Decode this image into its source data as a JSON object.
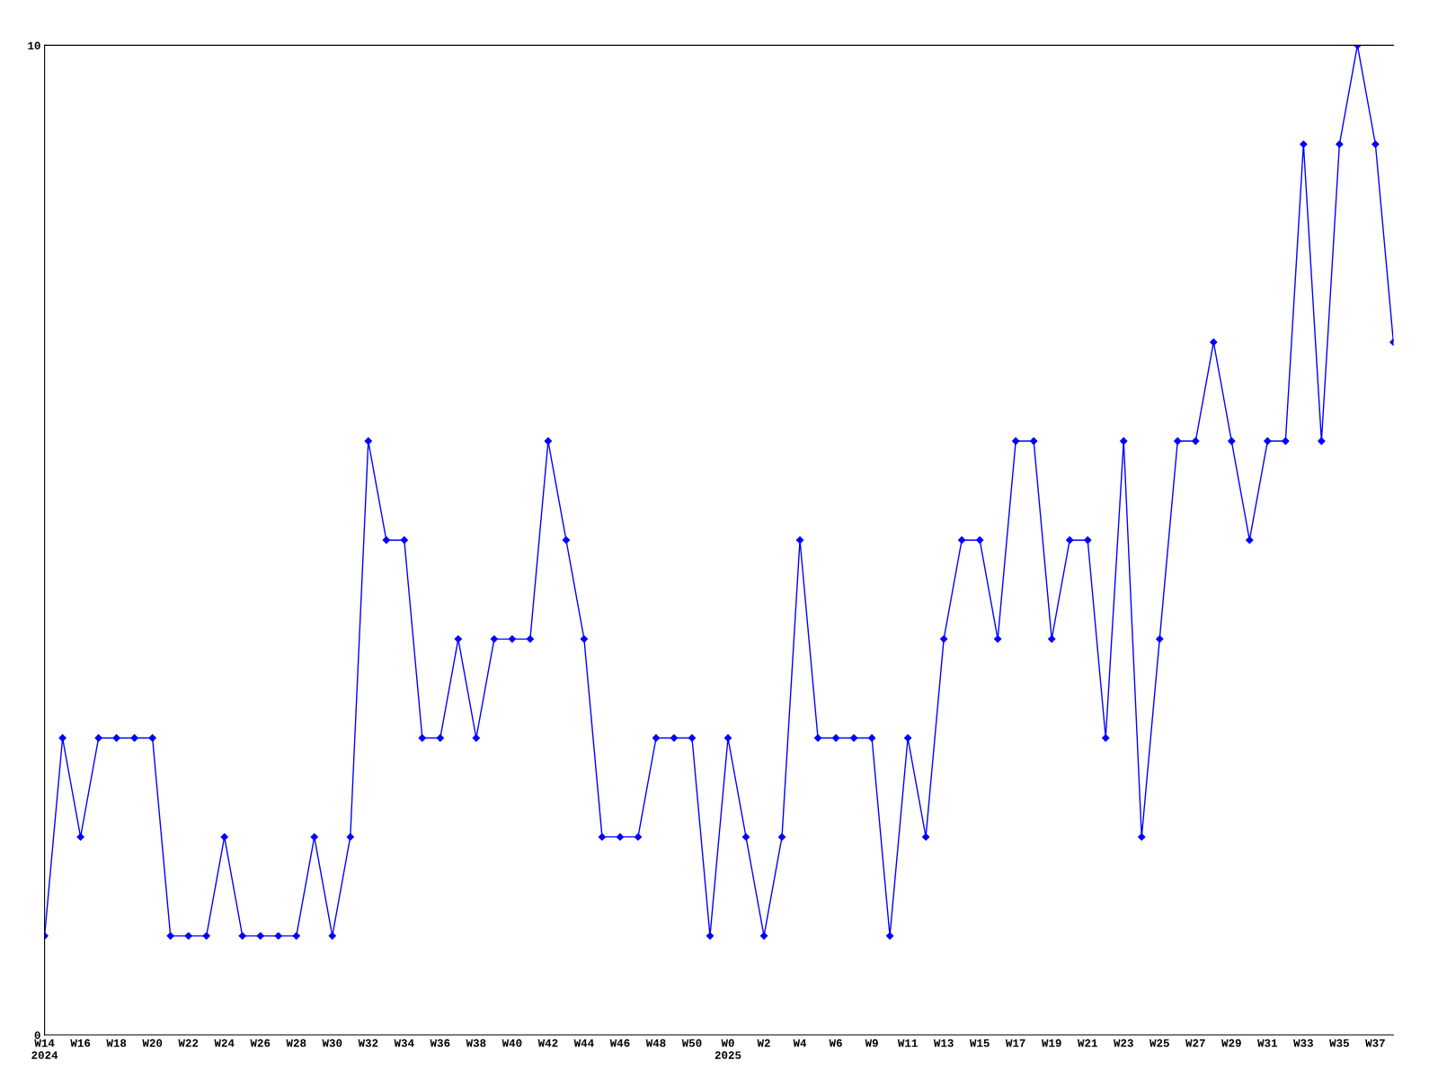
{
  "chart_data": {
    "type": "line",
    "categories": [
      "W14\n2024",
      null,
      "W16",
      null,
      "W18",
      null,
      "W20",
      null,
      "W22",
      null,
      "W24",
      null,
      "W26",
      null,
      "W28",
      null,
      "W30",
      null,
      "W32",
      null,
      "W34",
      null,
      "W36",
      null,
      "W38",
      null,
      "W40",
      null,
      "W42",
      null,
      "W44",
      null,
      "W46",
      null,
      "W48",
      null,
      "W50",
      null,
      "W0\n2025",
      null,
      "W2",
      null,
      "W4",
      null,
      "W6",
      null,
      "W9",
      null,
      "W11",
      null,
      "W13",
      null,
      "W15",
      null,
      "W17",
      null,
      "W19",
      null,
      "W21",
      null,
      "W23",
      null,
      "W25",
      null,
      "W27",
      null,
      "W29",
      null,
      "W31",
      null,
      "W33",
      null,
      "W35",
      null,
      "W37",
      null
    ],
    "series": [
      {
        "color": "#0000ff",
        "values": [
          1,
          3,
          2,
          3,
          3,
          3,
          3,
          1,
          1,
          1,
          2,
          1,
          1,
          1,
          1,
          2,
          1,
          2,
          6,
          5,
          5,
          3,
          3,
          4,
          3,
          4,
          4,
          4,
          6,
          5,
          4,
          2,
          2,
          2,
          3,
          3,
          3,
          1,
          3,
          2,
          1,
          2,
          5,
          3,
          3,
          3,
          3,
          1,
          3,
          2,
          4,
          5,
          5,
          4,
          6,
          6,
          4,
          5,
          5,
          3,
          6,
          2,
          4,
          6,
          6,
          7,
          6,
          5,
          6,
          6,
          9,
          6,
          9,
          10,
          9,
          7
        ]
      }
    ],
    "ylim": [
      0,
      10
    ],
    "yticks": [
      0,
      10
    ],
    "marker": "diamond",
    "line_style": "solid",
    "grid": false,
    "legend": false
  }
}
